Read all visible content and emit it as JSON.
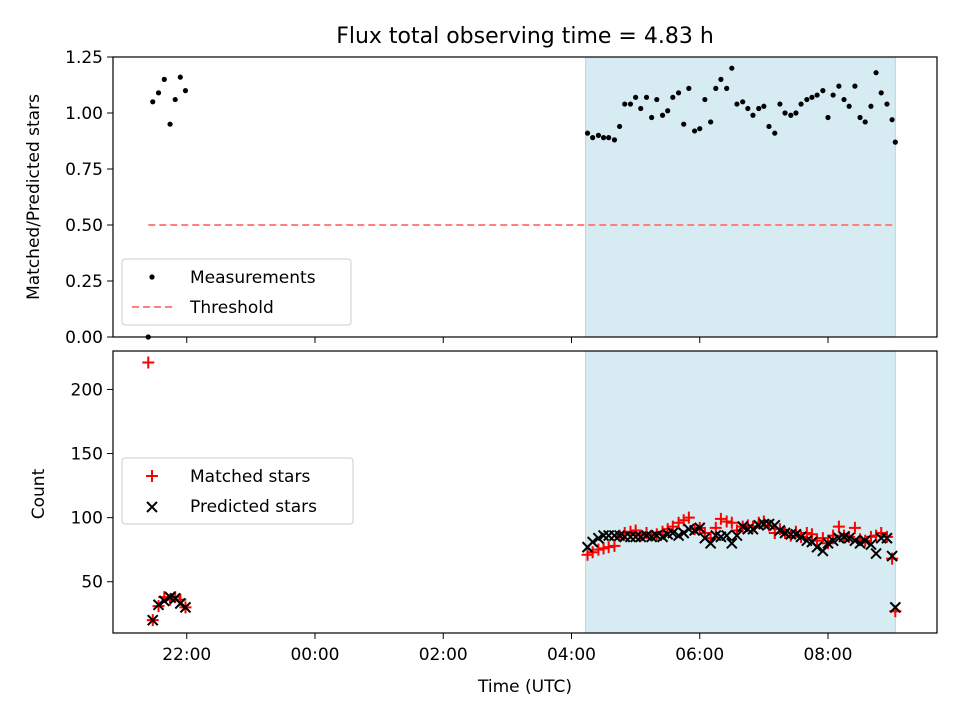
{
  "chart_data": [
    {
      "type": "scatter",
      "title": "Flux total observing time = 4.83 h",
      "xlabel": "",
      "ylabel": "Matched/Predicted stars",
      "x_unit": "hours since 00:00 UTC (22:00 = -2)",
      "xlim": [
        -3.15,
        9.7
      ],
      "ylim": [
        0,
        1.25
      ],
      "y_ticks": [
        "0.00",
        "0.25",
        "0.50",
        "0.75",
        "1.00",
        "1.25"
      ],
      "x_tick_positions": [
        -2,
        0,
        2,
        4,
        6,
        8
      ],
      "shaded_interval": [
        4.22,
        9.05
      ],
      "threshold": {
        "value": 0.5,
        "x_range": [
          -2.6,
          9.05
        ],
        "color": "#ff7f7f",
        "style": "dashed"
      },
      "legend": {
        "position": "lower-left",
        "entries": [
          "Measurements",
          "Threshold"
        ]
      },
      "series": [
        {
          "name": "Measurements",
          "marker": "dot",
          "color": "#000000",
          "points": [
            [
              -2.6,
              0.0
            ],
            [
              -2.53,
              1.05
            ],
            [
              -2.44,
              1.09
            ],
            [
              -2.35,
              1.15
            ],
            [
              -2.26,
              0.95
            ],
            [
              -2.18,
              1.06
            ],
            [
              -2.1,
              1.16
            ],
            [
              -2.02,
              1.1
            ],
            [
              4.25,
              0.91
            ],
            [
              4.33,
              0.89
            ],
            [
              4.42,
              0.9
            ],
            [
              4.5,
              0.89
            ],
            [
              4.58,
              0.89
            ],
            [
              4.67,
              0.88
            ],
            [
              4.75,
              0.94
            ],
            [
              4.83,
              1.04
            ],
            [
              4.92,
              1.04
            ],
            [
              5.0,
              1.07
            ],
            [
              5.08,
              1.02
            ],
            [
              5.17,
              1.07
            ],
            [
              5.25,
              0.98
            ],
            [
              5.33,
              1.06
            ],
            [
              5.42,
              0.99
            ],
            [
              5.5,
              1.01
            ],
            [
              5.58,
              1.07
            ],
            [
              5.67,
              1.09
            ],
            [
              5.75,
              0.95
            ],
            [
              5.83,
              1.11
            ],
            [
              5.92,
              0.92
            ],
            [
              6.0,
              0.93
            ],
            [
              6.08,
              1.06
            ],
            [
              6.17,
              0.96
            ],
            [
              6.25,
              1.11
            ],
            [
              6.33,
              1.15
            ],
            [
              6.42,
              1.11
            ],
            [
              6.5,
              1.2
            ],
            [
              6.58,
              1.04
            ],
            [
              6.67,
              1.05
            ],
            [
              6.75,
              1.02
            ],
            [
              6.83,
              0.99
            ],
            [
              6.92,
              1.02
            ],
            [
              7.0,
              1.03
            ],
            [
              7.08,
              0.94
            ],
            [
              7.17,
              0.91
            ],
            [
              7.25,
              1.04
            ],
            [
              7.33,
              1.0
            ],
            [
              7.42,
              0.99
            ],
            [
              7.5,
              1.0
            ],
            [
              7.58,
              1.04
            ],
            [
              7.67,
              1.06
            ],
            [
              7.75,
              1.07
            ],
            [
              7.83,
              1.08
            ],
            [
              7.92,
              1.1
            ],
            [
              8.0,
              0.98
            ],
            [
              8.08,
              1.08
            ],
            [
              8.17,
              1.12
            ],
            [
              8.25,
              1.06
            ],
            [
              8.33,
              1.03
            ],
            [
              8.42,
              1.12
            ],
            [
              8.5,
              0.98
            ],
            [
              8.58,
              0.96
            ],
            [
              8.67,
              1.03
            ],
            [
              8.75,
              1.18
            ],
            [
              8.83,
              1.09
            ],
            [
              8.92,
              1.04
            ],
            [
              9.0,
              0.97
            ],
            [
              9.05,
              0.87
            ]
          ]
        }
      ]
    },
    {
      "type": "scatter",
      "title": "",
      "xlabel": "Time (UTC)",
      "ylabel": "Count",
      "xlim": [
        -3.15,
        9.7
      ],
      "ylim": [
        10,
        230
      ],
      "y_ticks": [
        "50",
        "100",
        "150",
        "200"
      ],
      "y_tick_values": [
        50,
        100,
        150,
        200
      ],
      "x_ticks": [
        "22:00",
        "00:00",
        "02:00",
        "04:00",
        "06:00",
        "08:00"
      ],
      "x_tick_positions": [
        -2,
        0,
        2,
        4,
        6,
        8
      ],
      "shaded_interval": [
        4.22,
        9.05
      ],
      "legend": {
        "position": "center-left",
        "entries": [
          "Matched stars",
          "Predicted stars"
        ]
      },
      "series": [
        {
          "name": "Matched stars",
          "marker": "plus",
          "color": "#ff0000",
          "points": [
            [
              -2.6,
              221
            ],
            [
              -2.53,
              20
            ],
            [
              -2.44,
              31
            ],
            [
              -2.35,
              38
            ],
            [
              -2.26,
              36
            ],
            [
              -2.18,
              38
            ],
            [
              -2.1,
              36
            ],
            [
              -2.02,
              30
            ],
            [
              4.25,
              71
            ],
            [
              4.33,
              73
            ],
            [
              4.42,
              75
            ],
            [
              4.5,
              76
            ],
            [
              4.58,
              77
            ],
            [
              4.67,
              78
            ],
            [
              4.75,
              86
            ],
            [
              4.83,
              88
            ],
            [
              4.92,
              89
            ],
            [
              5.0,
              90
            ],
            [
              5.08,
              86
            ],
            [
              5.17,
              88
            ],
            [
              5.25,
              86
            ],
            [
              5.33,
              87
            ],
            [
              5.42,
              89
            ],
            [
              5.5,
              91
            ],
            [
              5.58,
              93
            ],
            [
              5.67,
              96
            ],
            [
              5.75,
              98
            ],
            [
              5.83,
              100
            ],
            [
              5.92,
              91
            ],
            [
              6.0,
              92
            ],
            [
              6.08,
              88
            ],
            [
              6.17,
              84
            ],
            [
              6.25,
              92
            ],
            [
              6.33,
              99
            ],
            [
              6.42,
              97
            ],
            [
              6.5,
              96
            ],
            [
              6.58,
              90
            ],
            [
              6.67,
              93
            ],
            [
              6.75,
              94
            ],
            [
              6.83,
              93
            ],
            [
              6.92,
              96
            ],
            [
              7.0,
              97
            ],
            [
              7.08,
              94
            ],
            [
              7.17,
              88
            ],
            [
              7.25,
              91
            ],
            [
              7.33,
              88
            ],
            [
              7.42,
              86
            ],
            [
              7.5,
              89
            ],
            [
              7.58,
              85
            ],
            [
              7.67,
              88
            ],
            [
              7.75,
              87
            ],
            [
              7.83,
              82
            ],
            [
              7.92,
              84
            ],
            [
              8.0,
              80
            ],
            [
              8.08,
              86
            ],
            [
              8.17,
              93
            ],
            [
              8.25,
              86
            ],
            [
              8.33,
              85
            ],
            [
              8.42,
              92
            ],
            [
              8.5,
              83
            ],
            [
              8.58,
              82
            ],
            [
              8.67,
              85
            ],
            [
              8.75,
              86
            ],
            [
              8.83,
              88
            ],
            [
              8.92,
              85
            ],
            [
              9.0,
              68
            ],
            [
              9.05,
              27
            ]
          ]
        },
        {
          "name": "Predicted stars",
          "marker": "cross",
          "color": "#000000",
          "points": [
            [
              -2.53,
              20
            ],
            [
              -2.44,
              32
            ],
            [
              -2.35,
              35
            ],
            [
              -2.26,
              38
            ],
            [
              -2.18,
              37
            ],
            [
              -2.1,
              33
            ],
            [
              -2.02,
              30
            ],
            [
              4.25,
              77
            ],
            [
              4.33,
              81
            ],
            [
              4.42,
              84
            ],
            [
              4.5,
              86
            ],
            [
              4.58,
              86
            ],
            [
              4.67,
              86
            ],
            [
              4.75,
              86
            ],
            [
              4.83,
              85
            ],
            [
              4.92,
              85
            ],
            [
              5.0,
              85
            ],
            [
              5.08,
              85
            ],
            [
              5.17,
              86
            ],
            [
              5.25,
              85
            ],
            [
              5.33,
              86
            ],
            [
              5.42,
              85
            ],
            [
              5.5,
              87
            ],
            [
              5.58,
              88
            ],
            [
              5.67,
              86
            ],
            [
              5.75,
              88
            ],
            [
              5.83,
              91
            ],
            [
              5.92,
              90
            ],
            [
              6.0,
              92
            ],
            [
              6.08,
              84
            ],
            [
              6.17,
              80
            ],
            [
              6.25,
              86
            ],
            [
              6.33,
              85
            ],
            [
              6.42,
              86
            ],
            [
              6.5,
              80
            ],
            [
              6.58,
              86
            ],
            [
              6.67,
              93
            ],
            [
              6.75,
              91
            ],
            [
              6.83,
              91
            ],
            [
              6.92,
              94
            ],
            [
              7.0,
              95
            ],
            [
              7.08,
              95
            ],
            [
              7.17,
              94
            ],
            [
              7.25,
              90
            ],
            [
              7.33,
              88
            ],
            [
              7.42,
              87
            ],
            [
              7.5,
              87
            ],
            [
              7.58,
              85
            ],
            [
              7.67,
              82
            ],
            [
              7.75,
              81
            ],
            [
              7.83,
              77
            ],
            [
              7.92,
              74
            ],
            [
              8.0,
              80
            ],
            [
              8.08,
              82
            ],
            [
              8.17,
              84
            ],
            [
              8.25,
              85
            ],
            [
              8.33,
              84
            ],
            [
              8.42,
              82
            ],
            [
              8.5,
              80
            ],
            [
              8.58,
              82
            ],
            [
              8.67,
              79
            ],
            [
              8.75,
              72
            ],
            [
              8.83,
              84
            ],
            [
              8.92,
              84
            ],
            [
              9.0,
              70
            ],
            [
              9.05,
              30
            ]
          ]
        }
      ]
    }
  ],
  "colors": {
    "shade": "#add8e6",
    "threshold": "#ff7f7f",
    "matched": "#ff0000",
    "predicted": "#000000"
  }
}
